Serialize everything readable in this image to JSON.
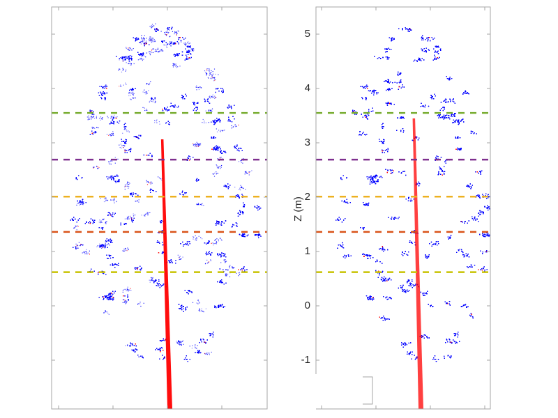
{
  "chart_data": [
    {
      "type": "scatter",
      "panel": "left",
      "title": "",
      "xlabel": "",
      "ylabel": "",
      "description": "Side view of a tree point cloud: foliage points in blue, stem points in red, with five horizontal dashed height lines",
      "ylim": [
        -1.3,
        5.5
      ],
      "yticks": [
        -1,
        0,
        1,
        2,
        3,
        4,
        5
      ],
      "ytick_labels_visible": false,
      "xticks_count": 4,
      "grid": false,
      "series": [
        {
          "name": "foliage points",
          "color": "#0000ff"
        },
        {
          "name": "stem points",
          "color": "#ff0000"
        }
      ],
      "hlines": [
        {
          "z": 3.55,
          "color": "#77ac30",
          "style": "dashed"
        },
        {
          "z": 2.69,
          "color": "#7e2f8e",
          "style": "dashed"
        },
        {
          "z": 2.01,
          "color": "#edb120",
          "style": "dashed"
        },
        {
          "z": 1.36,
          "color": "#d95319",
          "style": "dashed"
        },
        {
          "z": 0.62,
          "color": "#c8c200",
          "style": "dashed"
        }
      ]
    },
    {
      "type": "scatter",
      "panel": "right",
      "title": "",
      "xlabel": "",
      "ylabel": "Z (m)",
      "description": "Side view of a tree point cloud: foliage points in blue, stem points in red, with five horizontal dashed height lines",
      "ylim": [
        -1.3,
        5.5
      ],
      "yticks": [
        -1,
        0,
        1,
        2,
        3,
        4,
        5
      ],
      "ytick_labels": [
        "-1",
        "0",
        "1",
        "2",
        "3",
        "4",
        "5"
      ],
      "ytick_labels_visible": true,
      "xticks_count": 4,
      "grid": false,
      "series": [
        {
          "name": "foliage points",
          "color": "#0000ff"
        },
        {
          "name": "stem points",
          "color": "#ff0000"
        }
      ],
      "hlines": [
        {
          "z": 3.55,
          "color": "#77ac30",
          "style": "dashed"
        },
        {
          "z": 2.69,
          "color": "#7e2f8e",
          "style": "dashed"
        },
        {
          "z": 2.01,
          "color": "#edb120",
          "style": "dashed"
        },
        {
          "z": 1.36,
          "color": "#d95319",
          "style": "dashed"
        },
        {
          "z": 0.62,
          "color": "#c8c200",
          "style": "dashed"
        }
      ]
    }
  ],
  "labels": {
    "right_ylabel": "Z (m)",
    "right_ticks": [
      "5",
      "4",
      "3",
      "2",
      "1",
      "0",
      "-1"
    ]
  },
  "colors": {
    "foliage": "#0000ff",
    "stem": "#ff0000",
    "axis": "#a6a6a6",
    "text": "#262626"
  }
}
